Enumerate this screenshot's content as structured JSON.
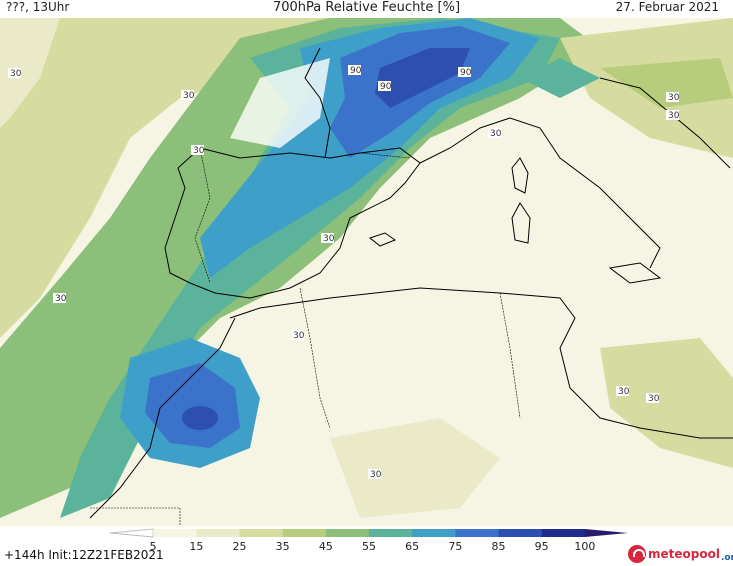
{
  "header": {
    "left": "???, 13Uhr",
    "title": "700hPa Relative Feuchte [%]",
    "date": "27. Februar 2021"
  },
  "legend": {
    "ticks": [
      "5",
      "15",
      "25",
      "35",
      "45",
      "55",
      "65",
      "75",
      "85",
      "95",
      "100"
    ],
    "colors": [
      "#ffffff",
      "#f6f5e4",
      "#eae9c8",
      "#d6dca0",
      "#b7cd7c",
      "#8cc07a",
      "#5bb39c",
      "#3ea0c8",
      "#3a73c9",
      "#2c4fb0",
      "#1d2d8c",
      "#2a1a6b"
    ]
  },
  "footer": {
    "init": "+144h  Init:12Z21FEB2021"
  },
  "logo": {
    "text": "meteopool",
    "tld": ".org"
  },
  "map": {
    "contour_labels": [
      "30",
      "30",
      "30",
      "30",
      "30",
      "30",
      "30",
      "30",
      "30",
      "30",
      "30",
      "90",
      "90",
      "90",
      "30"
    ]
  }
}
